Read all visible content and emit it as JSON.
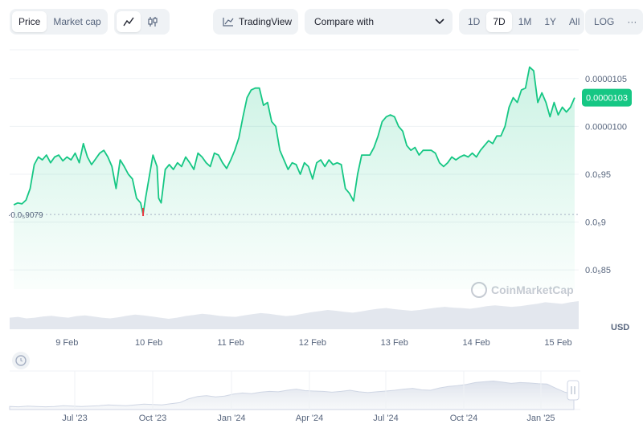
{
  "toolbar": {
    "price_label": "Price",
    "market_cap_label": "Market cap",
    "line_icon": "line-chart-icon",
    "candle_icon": "candlestick-icon",
    "tradingview_label": "TradingView",
    "compare_label": "Compare with",
    "ranges": [
      "1D",
      "7D",
      "1M",
      "1Y",
      "All"
    ],
    "active_range": "7D",
    "log_label": "LOG",
    "more_label": "···"
  },
  "chart_data": {
    "type": "area",
    "x_tick_labels": [
      "9 Feb",
      "10 Feb",
      "11 Feb",
      "12 Feb",
      "13 Feb",
      "14 Feb",
      "15 Feb"
    ],
    "y_tick_labels": [
      "0.0000105",
      "0.0000100",
      "0.0₅95",
      "0.0₅9",
      "0.0₅85"
    ],
    "ylim": [
      8.3e-06,
      1.08e-05
    ],
    "x_range": [
      8.3,
      15.25
    ],
    "current_price_label": "0.0000103",
    "low_label": "·0.0₅9079",
    "low_value": 9.0791e-06,
    "unit_label": "USD",
    "watermark": "CoinMarketCap",
    "series": [
      {
        "values": [
          [
            8.35,
            9.18e-06
          ],
          [
            8.4,
            9.2e-06
          ],
          [
            8.45,
            9.19e-06
          ],
          [
            8.5,
            9.23e-06
          ],
          [
            8.55,
            9.35e-06
          ],
          [
            8.6,
            9.6e-06
          ],
          [
            8.65,
            9.68e-06
          ],
          [
            8.7,
            9.65e-06
          ],
          [
            8.75,
            9.7e-06
          ],
          [
            8.8,
            9.62e-06
          ],
          [
            8.85,
            9.68e-06
          ],
          [
            8.9,
            9.7e-06
          ],
          [
            8.95,
            9.64e-06
          ],
          [
            9.0,
            9.68e-06
          ],
          [
            9.05,
            9.65e-06
          ],
          [
            9.1,
            9.72e-06
          ],
          [
            9.15,
            9.62e-06
          ],
          [
            9.2,
            9.82e-06
          ],
          [
            9.25,
            9.68e-06
          ],
          [
            9.3,
            9.6e-06
          ],
          [
            9.35,
            9.66e-06
          ],
          [
            9.4,
            9.72e-06
          ],
          [
            9.45,
            9.75e-06
          ],
          [
            9.5,
            9.68e-06
          ],
          [
            9.55,
            9.58e-06
          ],
          [
            9.6,
            9.35e-06
          ],
          [
            9.65,
            9.65e-06
          ],
          [
            9.7,
            9.58e-06
          ],
          [
            9.75,
            9.5e-06
          ],
          [
            9.8,
            9.45e-06
          ],
          [
            9.85,
            9.25e-06
          ],
          [
            9.9,
            9.2e-06
          ],
          [
            9.93,
            9.08e-06
          ],
          [
            9.96,
            9.25e-06
          ],
          [
            10.0,
            9.45e-06
          ],
          [
            10.05,
            9.7e-06
          ],
          [
            10.1,
            9.58e-06
          ],
          [
            10.12,
            9.25e-06
          ],
          [
            10.15,
            9.2e-06
          ],
          [
            10.2,
            9.55e-06
          ],
          [
            10.25,
            9.6e-06
          ],
          [
            10.3,
            9.55e-06
          ],
          [
            10.35,
            9.62e-06
          ],
          [
            10.4,
            9.58e-06
          ],
          [
            10.45,
            9.68e-06
          ],
          [
            10.5,
            9.62e-06
          ],
          [
            10.55,
            9.55e-06
          ],
          [
            10.6,
            9.72e-06
          ],
          [
            10.65,
            9.68e-06
          ],
          [
            10.7,
            9.62e-06
          ],
          [
            10.75,
            9.58e-06
          ],
          [
            10.8,
            9.72e-06
          ],
          [
            10.85,
            9.7e-06
          ],
          [
            10.9,
            9.62e-06
          ],
          [
            10.95,
            9.56e-06
          ],
          [
            11.0,
            9.65e-06
          ],
          [
            11.05,
            9.75e-06
          ],
          [
            11.1,
            9.88e-06
          ],
          [
            11.15,
            1.01e-05
          ],
          [
            11.2,
            1.03e-05
          ],
          [
            11.25,
            1.038e-05
          ],
          [
            11.3,
            1.04e-05
          ],
          [
            11.35,
            1.04e-05
          ],
          [
            11.4,
            1.022e-05
          ],
          [
            11.45,
            1.025e-05
          ],
          [
            11.5,
            1.005e-05
          ],
          [
            11.55,
            1e-05
          ],
          [
            11.6,
            9.75e-06
          ],
          [
            11.65,
            9.65e-06
          ],
          [
            11.7,
            9.55e-06
          ],
          [
            11.75,
            9.62e-06
          ],
          [
            11.8,
            9.6e-06
          ],
          [
            11.85,
            9.5e-06
          ],
          [
            11.9,
            9.62e-06
          ],
          [
            11.95,
            9.58e-06
          ],
          [
            12.0,
            9.45e-06
          ],
          [
            12.05,
            9.62e-06
          ],
          [
            12.1,
            9.65e-06
          ],
          [
            12.15,
            9.58e-06
          ],
          [
            12.2,
            9.65e-06
          ],
          [
            12.25,
            9.6e-06
          ],
          [
            12.3,
            9.62e-06
          ],
          [
            12.35,
            9.6e-06
          ],
          [
            12.4,
            9.35e-06
          ],
          [
            12.45,
            9.3e-06
          ],
          [
            12.5,
            9.22e-06
          ],
          [
            12.55,
            9.5e-06
          ],
          [
            12.6,
            9.7e-06
          ],
          [
            12.65,
            9.7e-06
          ],
          [
            12.7,
            9.7e-06
          ],
          [
            12.75,
            9.78e-06
          ],
          [
            12.8,
            9.9e-06
          ],
          [
            12.85,
            1.005e-05
          ],
          [
            12.9,
            1.01e-05
          ],
          [
            12.95,
            1.012e-05
          ],
          [
            13.0,
            1.01e-05
          ],
          [
            13.05,
            1e-05
          ],
          [
            13.1,
            9.95e-06
          ],
          [
            13.15,
            9.8e-06
          ],
          [
            13.2,
            9.75e-06
          ],
          [
            13.25,
            9.78e-06
          ],
          [
            13.3,
            9.7e-06
          ],
          [
            13.35,
            9.75e-06
          ],
          [
            13.4,
            9.75e-06
          ],
          [
            13.45,
            9.75e-06
          ],
          [
            13.5,
            9.72e-06
          ],
          [
            13.55,
            9.62e-06
          ],
          [
            13.6,
            9.58e-06
          ],
          [
            13.65,
            9.62e-06
          ],
          [
            13.7,
            9.68e-06
          ],
          [
            13.75,
            9.65e-06
          ],
          [
            13.8,
            9.68e-06
          ],
          [
            13.85,
            9.7e-06
          ],
          [
            13.9,
            9.68e-06
          ],
          [
            13.95,
            9.72e-06
          ],
          [
            14.0,
            9.68e-06
          ],
          [
            14.05,
            9.75e-06
          ],
          [
            14.1,
            9.8e-06
          ],
          [
            14.15,
            9.85e-06
          ],
          [
            14.2,
            9.82e-06
          ],
          [
            14.25,
            9.9e-06
          ],
          [
            14.3,
            9.9e-06
          ],
          [
            14.35,
            1e-05
          ],
          [
            14.4,
            1.02e-05
          ],
          [
            14.45,
            1.03e-05
          ],
          [
            14.5,
            1.025e-05
          ],
          [
            14.55,
            1.038e-05
          ],
          [
            14.6,
            1.04e-05
          ],
          [
            14.65,
            1.062e-05
          ],
          [
            14.7,
            1.058e-05
          ],
          [
            14.75,
            1.025e-05
          ],
          [
            14.8,
            1.035e-05
          ],
          [
            14.85,
            1.025e-05
          ],
          [
            14.9,
            1.01e-05
          ],
          [
            14.95,
            1.025e-05
          ],
          [
            15.0,
            1.012e-05
          ],
          [
            15.05,
            1.02e-05
          ],
          [
            15.1,
            1.015e-05
          ],
          [
            15.15,
            1.02e-05
          ],
          [
            15.2,
            1.03e-05
          ]
        ]
      }
    ],
    "volume": [
      0.3,
      0.32,
      0.28,
      0.3,
      0.33,
      0.35,
      0.32,
      0.3,
      0.34,
      0.36,
      0.33,
      0.3,
      0.28,
      0.31,
      0.35,
      0.38,
      0.36,
      0.33,
      0.3,
      0.27,
      0.3,
      0.34,
      0.37,
      0.4,
      0.38,
      0.35,
      0.33,
      0.32,
      0.36,
      0.39,
      0.42,
      0.4,
      0.37,
      0.34,
      0.36,
      0.4,
      0.44,
      0.47,
      0.5,
      0.48,
      0.45,
      0.43,
      0.46,
      0.5,
      0.53,
      0.55,
      0.52,
      0.5,
      0.48,
      0.5,
      0.53,
      0.56,
      0.58,
      0.56,
      0.55,
      0.53,
      0.56,
      0.6,
      0.62,
      0.6,
      0.58,
      0.6,
      0.63,
      0.66,
      0.7,
      0.68,
      0.66,
      0.7,
      0.73
    ],
    "nav": {
      "x_tick_labels": [
        "Jul '23",
        "Oct '23",
        "Jan '24",
        "Apr '24",
        "Jul '24",
        "Oct '24",
        "Jan '25"
      ],
      "values": [
        0.08,
        0.07,
        0.09,
        0.08,
        0.07,
        0.08,
        0.1,
        0.09,
        0.08,
        0.09,
        0.1,
        0.12,
        0.11,
        0.1,
        0.12,
        0.14,
        0.13,
        0.12,
        0.15,
        0.18,
        0.28,
        0.34,
        0.36,
        0.33,
        0.35,
        0.4,
        0.43,
        0.41,
        0.45,
        0.47,
        0.46,
        0.5,
        0.53,
        0.49,
        0.48,
        0.47,
        0.45,
        0.47,
        0.5,
        0.46,
        0.44,
        0.46,
        0.48,
        0.5,
        0.53,
        0.55,
        0.51,
        0.5,
        0.56,
        0.6,
        0.62,
        0.65,
        0.7,
        0.72,
        0.74,
        0.71,
        0.68,
        0.7,
        0.69,
        0.67,
        0.66,
        0.55,
        0.45,
        0.4
      ]
    }
  },
  "colors": {
    "line": "#16c784",
    "fill_top": "#16c784",
    "badge": "#16c784",
    "low_marker": "#ea3943",
    "grid": "#eff2f5"
  }
}
